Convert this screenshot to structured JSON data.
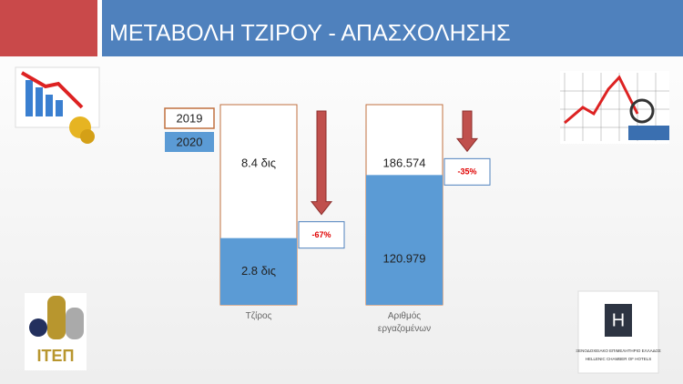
{
  "header": {
    "title": "ΜΕΤΑΒΟΛΗ ΤΖΙΡΟΥ - ΑΠΑΣΧΟΛΗΣΗΣ"
  },
  "chart_data": {
    "type": "bar",
    "categories": [
      "Τζίρος",
      "Αριθμός εργαζομένων"
    ],
    "series": [
      {
        "name": "2019",
        "color": "#c0703f",
        "values": [
          8.4,
          186574
        ],
        "value_labels": [
          "8.4 δις",
          "186.574"
        ]
      },
      {
        "name": "2020",
        "color": "#5b9bd5",
        "values": [
          2.8,
          120979
        ],
        "value_labels": [
          "2.8 δις",
          "120.979"
        ]
      }
    ],
    "changes": [
      -67,
      -35
    ],
    "change_labels": [
      "-67%",
      "-35%"
    ]
  },
  "logos": {
    "left": "ΙΤΕΠ",
    "right_initial": "H",
    "right_greek": "ΞΕΝΟΔΟΧΕΙΑΚΟ ΕΠΙΜΕΛΗΤΗΡΙΟ ΕΛΛΑΔΟΣ",
    "right_english": "HELLENIC CHAMBER OF HOTELS"
  }
}
